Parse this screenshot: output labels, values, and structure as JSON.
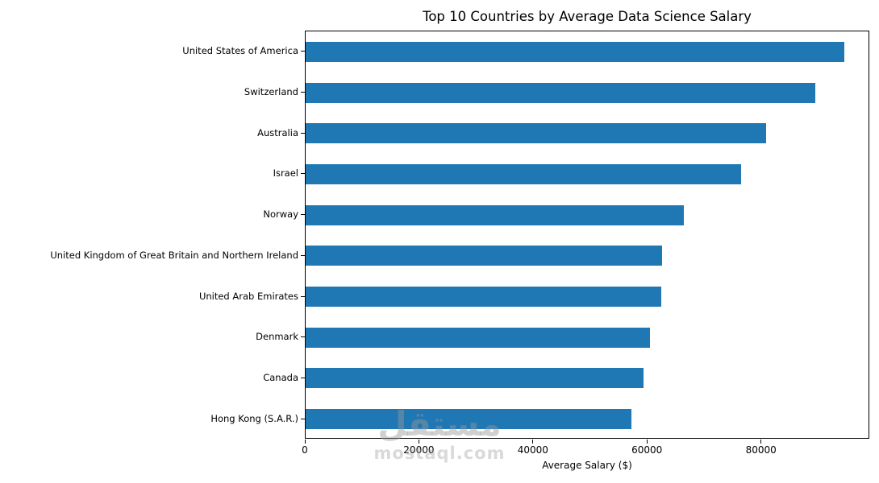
{
  "chart_data": {
    "type": "bar",
    "orientation": "horizontal",
    "title": "Top 10 Countries by Average Data Science Salary",
    "xlabel": "Average Salary ($)",
    "ylabel": "",
    "categories": [
      "United States of America",
      "Switzerland",
      "Australia",
      "Israel",
      "Norway",
      "United Kingdom of Great Britain and Northern Ireland",
      "United Arab Emirates",
      "Denmark",
      "Canada",
      "Hong Kong (S.A.R.)"
    ],
    "values": [
      94500,
      89400,
      80700,
      76400,
      66300,
      62500,
      62400,
      60400,
      59300,
      57200
    ],
    "xlim": [
      0,
      99000
    ],
    "xticks": [
      0,
      20000,
      40000,
      60000,
      80000
    ],
    "bar_color": "#1f77b4",
    "grid": false,
    "legend": "none"
  },
  "watermark": {
    "arabic": "مستقل",
    "domain": "mostaql.com"
  }
}
